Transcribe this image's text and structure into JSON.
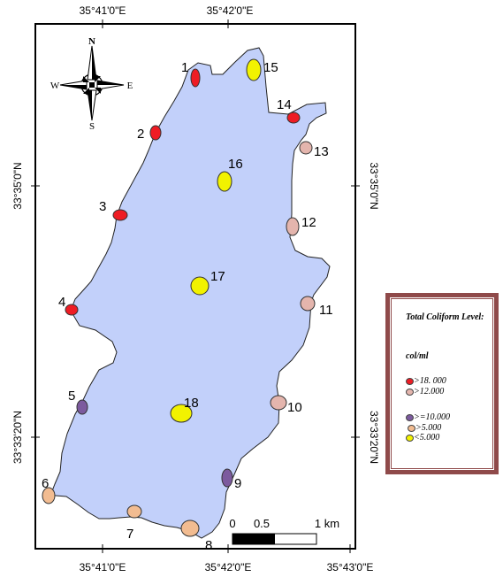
{
  "coordinates": {
    "top": [
      "35°41'0\"E",
      "35°42'0\"E"
    ],
    "bottom": [
      "35°41'0\"E",
      "35°42'0\"E",
      "35°43'0\"E"
    ],
    "left": [
      "33°35'0\"N",
      "33°33'20\"N"
    ],
    "right": [
      "33°35'0\"N",
      "33°33'20\"N"
    ]
  },
  "compass": {
    "north": "N",
    "south": "S",
    "east": "E",
    "west": "W"
  },
  "scale_bar": {
    "ticks": [
      "0",
      "0.5",
      "1 km"
    ]
  },
  "colors": {
    "lake": "#c2d0fa",
    "gt18": "#ee1c24",
    "gt12": "#e4b5ad",
    "ge10": "#7c5a9e",
    "gt5": "#f2bc91",
    "lt5": "#f2f200",
    "legend_border": "#8f4a4a"
  },
  "sites": [
    {
      "label": "1",
      "level": "gt18"
    },
    {
      "label": "2",
      "level": "gt18"
    },
    {
      "label": "3",
      "level": "gt18"
    },
    {
      "label": "4",
      "level": "gt18"
    },
    {
      "label": "5",
      "level": "ge10"
    },
    {
      "label": "6",
      "level": "gt5"
    },
    {
      "label": "7",
      "level": "gt5"
    },
    {
      "label": "8",
      "level": "gt5"
    },
    {
      "label": "9",
      "level": "ge10"
    },
    {
      "label": "10",
      "level": "gt12"
    },
    {
      "label": "11",
      "level": "gt12"
    },
    {
      "label": "12",
      "level": "gt12"
    },
    {
      "label": "13",
      "level": "gt12"
    },
    {
      "label": "14",
      "level": "gt18"
    },
    {
      "label": "15",
      "level": "lt5"
    },
    {
      "label": "16",
      "level": "lt5"
    },
    {
      "label": "17",
      "level": "lt5"
    },
    {
      "label": "18",
      "level": "lt5"
    }
  ],
  "legend": {
    "title": "Total Coliform Level:",
    "unit": "col/ml",
    "entries": [
      {
        "label": ">18. 000",
        "level": "gt18"
      },
      {
        "label": ">12.000",
        "level": "gt12"
      },
      {
        "label": ">=10.000",
        "level": "ge10"
      },
      {
        "label": ">5.000",
        "level": "gt5"
      },
      {
        "label": "<5.000",
        "level": "lt5"
      }
    ]
  }
}
